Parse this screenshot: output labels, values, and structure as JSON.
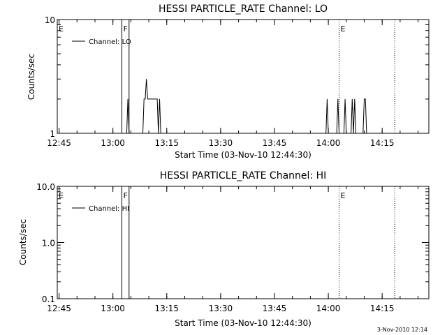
{
  "footer_stamp": "3-Nov-2010 12:14",
  "chart_data": [
    {
      "type": "line",
      "title": "HESSI PARTICLE_RATE Channel: LO",
      "xlabel": "Start Time (03-Nov-10 12:44:30)",
      "ylabel": "Counts/sec",
      "yscale": "log",
      "xlim": [
        "12:44:30",
        "14:28:00"
      ],
      "ylim": [
        1,
        10
      ],
      "x_ticks": [
        "12:45",
        "13:00",
        "13:15",
        "13:30",
        "13:45",
        "14:00",
        "14:15"
      ],
      "y_ticks": [
        {
          "value": 1,
          "label": "1"
        },
        {
          "value": 10,
          "label": "10"
        }
      ],
      "legend": {
        "position": "top-left",
        "entries": [
          "Channel: LO"
        ]
      },
      "grid": false,
      "series": [
        {
          "name": "Channel: LO",
          "x": [
            "13:03:20",
            "13:03:50",
            "13:04:10",
            "13:04:30",
            "13:04:50",
            "13:05:10",
            "13:08:20",
            "13:08:40",
            "13:09:00",
            "13:09:20",
            "13:09:40",
            "13:10:00",
            "13:10:20",
            "13:12:20",
            "13:12:40",
            "13:13:00",
            "13:13:20",
            "13:13:40",
            "13:59:20",
            "13:59:40",
            "14:00:00",
            "14:02:20",
            "14:02:40",
            "14:03:00",
            "14:04:20",
            "14:04:40",
            "14:05:00",
            "14:06:20",
            "14:06:40",
            "14:07:00",
            "14:07:20",
            "14:07:40",
            "14:09:40",
            "14:10:00",
            "14:10:20",
            "14:10:40"
          ],
          "values": [
            1,
            1,
            2,
            1,
            1,
            1,
            1,
            2,
            2,
            3,
            2,
            2,
            2,
            2,
            1,
            2,
            1,
            1,
            1,
            2,
            1,
            1,
            2,
            1,
            1,
            2,
            1,
            1,
            2,
            1,
            2,
            1,
            1,
            2,
            2,
            1
          ]
        }
      ],
      "markers": [
        {
          "time": "12:44:30",
          "label": "E",
          "style": "solid"
        },
        {
          "time": "13:02:30",
          "label": "F",
          "style": "solid"
        },
        {
          "time": "13:04:30",
          "label": "",
          "style": "solid"
        },
        {
          "time": "14:03:00",
          "label": "E",
          "style": "dotted"
        },
        {
          "time": "14:18:30",
          "label": "",
          "style": "dotted"
        }
      ]
    },
    {
      "type": "line",
      "title": "HESSI PARTICLE_RATE Channel: HI",
      "xlabel": "Start Time (03-Nov-10 12:44:30)",
      "ylabel": "Counts/sec",
      "yscale": "log",
      "xlim": [
        "12:44:30",
        "14:28:00"
      ],
      "ylim": [
        0.1,
        10
      ],
      "x_ticks": [
        "12:45",
        "13:00",
        "13:15",
        "13:30",
        "13:45",
        "14:00",
        "14:15"
      ],
      "y_ticks": [
        {
          "value": 0.1,
          "label": "0.1"
        },
        {
          "value": 1,
          "label": "1.0"
        },
        {
          "value": 10,
          "label": "10.0"
        }
      ],
      "legend": {
        "position": "top-left",
        "entries": [
          "Channel: HI"
        ]
      },
      "grid": false,
      "series": [
        {
          "name": "Channel: HI",
          "x": [],
          "values": []
        }
      ],
      "markers": [
        {
          "time": "12:44:30",
          "label": "E",
          "style": "solid"
        },
        {
          "time": "13:02:30",
          "label": "F",
          "style": "solid"
        },
        {
          "time": "13:04:30",
          "label": "",
          "style": "solid"
        },
        {
          "time": "14:03:00",
          "label": "E",
          "style": "dotted"
        },
        {
          "time": "14:18:30",
          "label": "",
          "style": "dotted"
        }
      ]
    }
  ]
}
